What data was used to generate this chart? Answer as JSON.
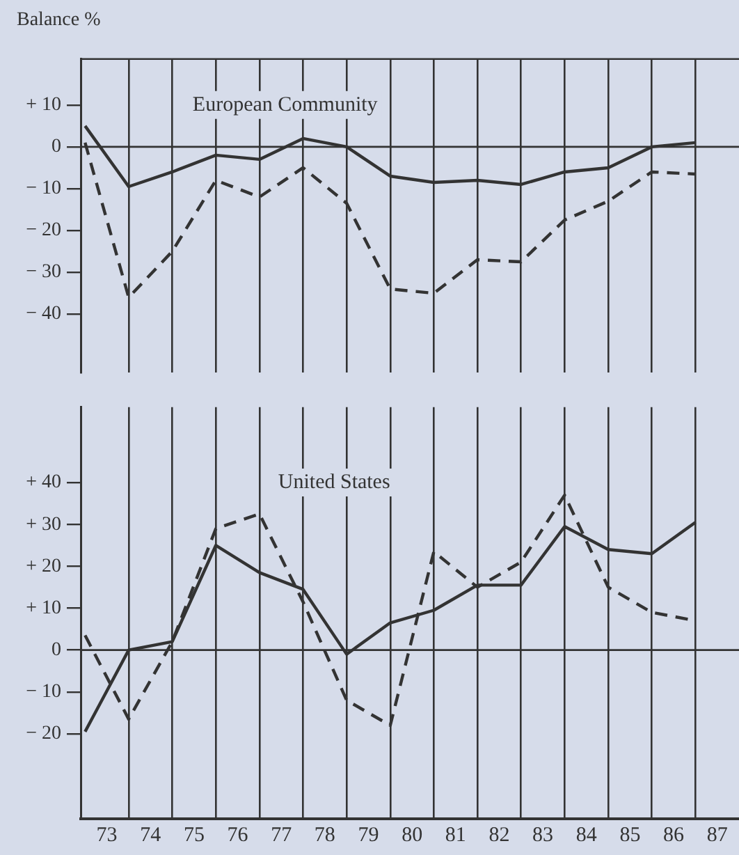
{
  "chart_data": [
    {
      "type": "line",
      "ylabel": "Balance %",
      "annotations": [
        "European Community"
      ],
      "x": [
        73,
        74,
        75,
        76,
        77,
        78,
        79,
        80,
        81,
        82,
        83,
        84,
        85,
        86,
        87
      ],
      "series": [
        {
          "color": "#333333",
          "line_style": "solid",
          "values": [
            5,
            -9.5,
            -6,
            -2,
            -3,
            2,
            0,
            -7,
            -8.5,
            -8,
            -9,
            -6,
            -5,
            0,
            1
          ]
        },
        {
          "color": "#333333",
          "line_style": "dashed",
          "values": [
            1,
            -36,
            -25,
            -8,
            -12,
            -5,
            -13.5,
            -34,
            -35,
            -27,
            -27.5,
            -17.5,
            -13,
            -6,
            -6.5
          ]
        }
      ],
      "xlim": [
        72.9,
        88
      ],
      "xticks": [
        {
          "value": 74,
          "label": null
        },
        {
          "value": 75,
          "label": null
        },
        {
          "value": 76,
          "label": null
        },
        {
          "value": 77,
          "label": null
        },
        {
          "value": 78,
          "label": null
        },
        {
          "value": 79,
          "label": null
        },
        {
          "value": 80,
          "label": null
        },
        {
          "value": 81,
          "label": null
        },
        {
          "value": 82,
          "label": null
        },
        {
          "value": 83,
          "label": null
        },
        {
          "value": 84,
          "label": null
        },
        {
          "value": 85,
          "label": null
        },
        {
          "value": 86,
          "label": null
        },
        {
          "value": 87,
          "label": null
        }
      ],
      "ylim": [
        -54,
        21
      ],
      "yticks": [
        {
          "value": 10,
          "label": "+ 10"
        },
        0,
        {
          "value": -10,
          "label": "− 10"
        },
        {
          "value": -20,
          "label": "− 20"
        },
        {
          "value": -30,
          "label": "− 30"
        },
        {
          "value": -40,
          "label": "− 40"
        }
      ],
      "ref_lines": [
        {
          "axis": "y",
          "value": 0
        }
      ],
      "grid": "x",
      "marker": "none",
      "legend": false,
      "tick_labels": "y"
    },
    {
      "type": "line",
      "annotations": [
        "United States"
      ],
      "x": [
        73,
        74,
        75,
        76,
        77,
        78,
        79,
        80,
        81,
        82,
        83,
        84,
        85,
        86,
        87
      ],
      "series": [
        {
          "color": "#333333",
          "line_style": "solid",
          "values": [
            -19.5,
            0,
            2,
            25,
            18.5,
            14.5,
            -1,
            6.5,
            9.5,
            15.5,
            15.5,
            29.5,
            24,
            23,
            30.5
          ]
        },
        {
          "color": "#333333",
          "line_style": "dashed",
          "values": [
            3.5,
            -16.5,
            2,
            29,
            32.5,
            11.5,
            -12,
            -18,
            23.5,
            15,
            21,
            37,
            15,
            9,
            7
          ]
        }
      ],
      "xlim": [
        72.9,
        88
      ],
      "xticks": [
        {
          "value": 74,
          "label": null
        },
        {
          "value": 75,
          "label": null
        },
        {
          "value": 76,
          "label": null
        },
        {
          "value": 77,
          "label": null
        },
        {
          "value": 78,
          "label": null
        },
        {
          "value": 79,
          "label": null
        },
        {
          "value": 80,
          "label": null
        },
        {
          "value": 81,
          "label": null
        },
        {
          "value": 82,
          "label": null
        },
        {
          "value": 83,
          "label": null
        },
        {
          "value": 84,
          "label": null
        },
        {
          "value": 85,
          "label": null
        },
        {
          "value": 86,
          "label": null
        },
        {
          "value": 87,
          "label": null
        },
        {
          "value": 73.5,
          "label": "73"
        },
        {
          "value": 74.5,
          "label": "74"
        },
        {
          "value": 75.5,
          "label": "75"
        },
        {
          "value": 76.5,
          "label": "76"
        },
        {
          "value": 77.5,
          "label": "77"
        },
        {
          "value": 78.5,
          "label": "78"
        },
        {
          "value": 79.5,
          "label": "79"
        },
        {
          "value": 80.5,
          "label": "80"
        },
        {
          "value": 81.5,
          "label": "81"
        },
        {
          "value": 82.5,
          "label": "82"
        },
        {
          "value": 83.5,
          "label": "83"
        },
        {
          "value": 84.5,
          "label": "84"
        },
        {
          "value": 85.5,
          "label": "85"
        },
        {
          "value": 86.5,
          "label": "86"
        },
        {
          "value": 87.5,
          "label": "87"
        }
      ],
      "ylim": [
        -40.3,
        58
      ],
      "yticks": [
        {
          "value": 40,
          "label": "+ 40"
        },
        {
          "value": 30,
          "label": "+ 30"
        },
        {
          "value": 20,
          "label": "+ 20"
        },
        {
          "value": 10,
          "label": "+ 10"
        },
        0,
        {
          "value": -10,
          "label": "− 10"
        },
        {
          "value": -20,
          "label": "− 20"
        }
      ],
      "ref_lines": [
        {
          "axis": "y",
          "value": 0
        }
      ],
      "grid": "x",
      "marker": "none",
      "legend": false
    }
  ]
}
